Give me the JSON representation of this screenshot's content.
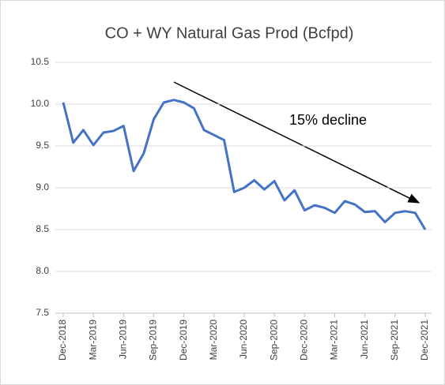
{
  "chart_data": {
    "type": "line",
    "title": "CO + WY Natural Gas Prod (Bcfpd)",
    "annotation": "15% decline",
    "categories": [
      "Dec-2018",
      null,
      null,
      "Mar-2019",
      null,
      null,
      "Jun-2019",
      null,
      null,
      "Sep-2019",
      null,
      null,
      "Dec-2019",
      null,
      null,
      "Mar-2020",
      null,
      null,
      "Jun-2020",
      null,
      null,
      "Sep-2020",
      null,
      null,
      "Dec-2020",
      null,
      null,
      "Mar-2021",
      null,
      null,
      "Jun-2021",
      null,
      null,
      "Sep-2021",
      null,
      null,
      "Dec-2021"
    ],
    "series": [
      {
        "name": "CO + WY",
        "color": "#4472c4",
        "values": [
          10.02,
          9.54,
          9.69,
          9.51,
          9.66,
          9.68,
          9.74,
          9.2,
          9.41,
          9.82,
          10.02,
          10.05,
          10.02,
          9.95,
          9.69,
          9.63,
          9.57,
          8.95,
          9.0,
          9.09,
          8.98,
          9.08,
          8.85,
          8.97,
          8.73,
          8.79,
          8.76,
          8.7,
          8.84,
          8.8,
          8.71,
          8.72,
          8.59,
          8.7,
          8.72,
          8.7,
          8.5
        ]
      }
    ],
    "ylim": [
      7.5,
      10.5
    ],
    "yticks": [
      7.5,
      {
        "value": 8,
        "label": "8.0"
      },
      8.5,
      {
        "value": 9,
        "label": "9.0"
      },
      9.5,
      {
        "value": 10,
        "label": "10.0"
      },
      10.5
    ],
    "grid": true
  }
}
